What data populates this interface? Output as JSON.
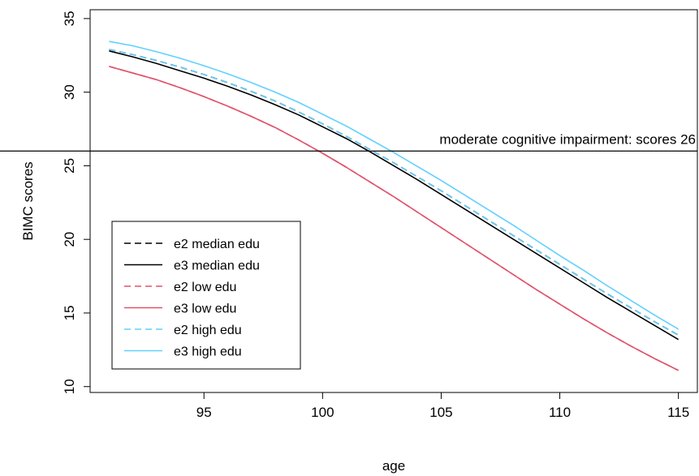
{
  "chart_data": {
    "type": "line",
    "xlabel": "age",
    "ylabel": "BIMC scores",
    "xlim": [
      90.2,
      115.8
    ],
    "ylim": [
      9.6,
      35.6
    ],
    "xticks": [
      95,
      100,
      105,
      110,
      115
    ],
    "yticks": [
      10,
      15,
      20,
      25,
      30,
      35
    ],
    "grid": false,
    "legend_position": "bottom-left",
    "x": [
      91,
      92,
      93,
      94,
      95,
      96,
      97,
      98,
      99,
      100,
      101,
      102,
      103,
      104,
      105,
      106,
      107,
      108,
      109,
      110,
      111,
      112,
      113,
      114,
      115
    ],
    "series": [
      {
        "name": "e2 median edu",
        "color": "#000000",
        "dash": "dashed",
        "values": [
          32.9,
          32.55,
          32.15,
          31.7,
          31.2,
          30.65,
          30.05,
          29.4,
          28.65,
          27.85,
          27.0,
          26.1,
          25.2,
          24.25,
          23.3,
          22.3,
          21.3,
          20.3,
          19.3,
          18.3,
          17.3,
          16.3,
          15.35,
          14.4,
          13.5
        ]
      },
      {
        "name": "e3 median edu",
        "color": "#000000",
        "dash": "solid",
        "values": [
          32.8,
          32.4,
          31.95,
          31.45,
          30.95,
          30.4,
          29.8,
          29.15,
          28.45,
          27.65,
          26.85,
          25.95,
          25.0,
          24.05,
          23.05,
          22.05,
          21.05,
          20.05,
          19.05,
          18.05,
          17.05,
          16.05,
          15.1,
          14.15,
          13.2
        ]
      },
      {
        "name": "e2 low edu",
        "color": "#DF536B",
        "dash": "dashed",
        "values": [
          31.75,
          31.3,
          30.85,
          30.3,
          29.7,
          29.05,
          28.35,
          27.6,
          26.75,
          25.85,
          24.9,
          23.9,
          22.9,
          21.85,
          20.8,
          19.75,
          18.7,
          17.65,
          16.6,
          15.6,
          14.6,
          13.65,
          12.75,
          11.9,
          11.1
        ]
      },
      {
        "name": "e3 low edu",
        "color": "#DF536B",
        "dash": "solid",
        "values": [
          31.75,
          31.3,
          30.85,
          30.3,
          29.7,
          29.05,
          28.35,
          27.6,
          26.75,
          25.85,
          24.9,
          23.9,
          22.9,
          21.85,
          20.8,
          19.75,
          18.7,
          17.65,
          16.6,
          15.6,
          14.6,
          13.65,
          12.75,
          11.9,
          11.1
        ]
      },
      {
        "name": "e2 high edu",
        "color": "#61D0FF",
        "dash": "dashed",
        "values": [
          32.9,
          32.55,
          32.15,
          31.7,
          31.2,
          30.65,
          30.05,
          29.4,
          28.65,
          27.85,
          27.0,
          26.1,
          25.2,
          24.25,
          23.3,
          22.3,
          21.3,
          20.3,
          19.3,
          18.3,
          17.3,
          16.3,
          15.35,
          14.4,
          13.5
        ]
      },
      {
        "name": "e3 high edu",
        "color": "#61D0FF",
        "dash": "solid",
        "values": [
          33.45,
          33.15,
          32.75,
          32.3,
          31.8,
          31.25,
          30.65,
          30.0,
          29.3,
          28.5,
          27.7,
          26.8,
          25.9,
          24.95,
          24.0,
          23.0,
          22.0,
          21.0,
          19.95,
          18.9,
          17.9,
          16.85,
          15.85,
          14.85,
          13.9
        ]
      }
    ],
    "reference_line": {
      "y": 26,
      "label": "moderate cognitive impairment: scores 26",
      "color": "#000000"
    }
  }
}
